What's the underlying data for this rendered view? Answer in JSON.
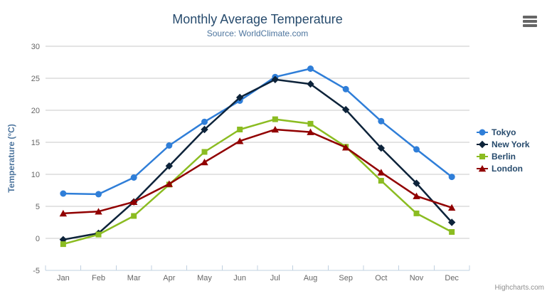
{
  "colors": {
    "title": "#274b6d",
    "subtitle": "#4d759e",
    "axis_title": "#4d759e",
    "labels": "#666666",
    "grid": "#c8c8c8",
    "axis_line": "#c0d0e0",
    "legend_text": "#274b6d",
    "credits": "#8f8f8f",
    "menu_icon": "#666666",
    "background": "#ffffff"
  },
  "chart_data": {
    "type": "line",
    "title": "Monthly Average Temperature",
    "subtitle": "Source: WorldClimate.com",
    "categories": [
      "Jan",
      "Feb",
      "Mar",
      "Apr",
      "May",
      "Jun",
      "Jul",
      "Aug",
      "Sep",
      "Oct",
      "Nov",
      "Dec"
    ],
    "series": [
      {
        "name": "Tokyo",
        "color": "#2f7ed8",
        "marker": "circle",
        "values": [
          7.0,
          6.9,
          9.5,
          14.5,
          18.2,
          21.5,
          25.2,
          26.5,
          23.3,
          18.3,
          13.9,
          9.6
        ]
      },
      {
        "name": "New York",
        "color": "#0d233a",
        "marker": "diamond",
        "values": [
          -0.2,
          0.8,
          5.7,
          11.3,
          17.0,
          22.0,
          24.8,
          24.1,
          20.1,
          14.1,
          8.6,
          2.5
        ]
      },
      {
        "name": "Berlin",
        "color": "#8bbc21",
        "marker": "square",
        "values": [
          -0.9,
          0.6,
          3.5,
          8.4,
          13.5,
          17.0,
          18.6,
          17.9,
          14.3,
          9.0,
          3.9,
          1.0
        ]
      },
      {
        "name": "London",
        "color": "#910000",
        "marker": "triangle",
        "values": [
          3.9,
          4.2,
          5.7,
          8.5,
          11.9,
          15.2,
          17.0,
          16.6,
          14.2,
          10.3,
          6.6,
          4.8
        ]
      }
    ],
    "xlabel": "",
    "ylabel": "Temperature (°C)",
    "ylim": [
      -5,
      30
    ],
    "yticks": [
      -5,
      0,
      5,
      10,
      15,
      20,
      25,
      30
    ],
    "grid": true,
    "legend_position": "right"
  },
  "credits": {
    "label": "Highcharts.com"
  }
}
